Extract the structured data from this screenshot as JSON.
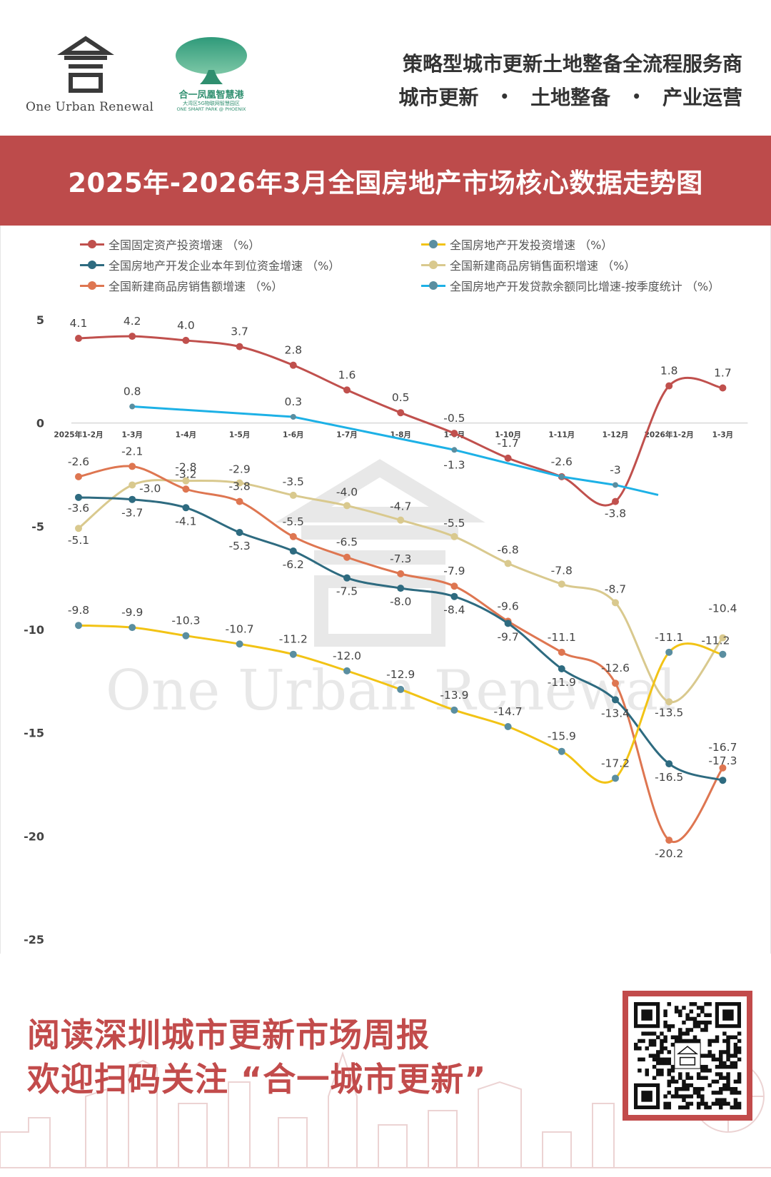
{
  "header": {
    "logo_text": "One Urban Renewal",
    "park_name": "合一凤凰智慧港",
    "park_subtitle_cn": "大湾区5G物联网智慧园区",
    "park_subtitle_en": "ONE SMART PARK @ PHOENIX",
    "slogan": "策略型城市更新土地整备全流程服务商",
    "services": [
      "城市更新",
      "土地整备",
      "产业运营"
    ],
    "services_separator": "•"
  },
  "banner": {
    "title": "2025年-2026年3月全国房地产市场核心数据走势图"
  },
  "watermark": {
    "text": "One Urban Renewal"
  },
  "chart_data": {
    "type": "line",
    "x": [
      "2025年1-2月",
      "1-3月",
      "1-4月",
      "1-5月",
      "1-6月",
      "1-7月",
      "1-8月",
      "1-9月",
      "1-10月",
      "1-11月",
      "1-12月",
      "2026年1-2月",
      "1-3月"
    ],
    "ylim": [
      -25,
      5
    ],
    "yticks": [
      5,
      0,
      -5,
      -10,
      -15,
      -20,
      -25
    ],
    "legend_position": "top",
    "grid": false,
    "series": [
      {
        "name": "全国固定资产投资增速 （%）",
        "color": "#c0504d",
        "values": [
          4.1,
          4.2,
          4.0,
          3.7,
          2.8,
          1.6,
          0.5,
          -0.5,
          -1.7,
          -2.6,
          -3.8,
          1.8,
          1.7
        ],
        "labels": [
          "4.1",
          "4.2",
          "4.0",
          "3.7",
          "2.8",
          "1.6",
          "0.5",
          "-0.5",
          "-1.7",
          "",
          "-3.8",
          "1.8",
          "1.7"
        ]
      },
      {
        "name": "全国房地产开发投资增速 （%）",
        "color": "#f2c315",
        "marker_color": "#5a8ea0",
        "values": [
          -9.8,
          -9.9,
          -10.3,
          -10.7,
          -11.2,
          -12.0,
          -12.9,
          -13.9,
          -14.7,
          -15.9,
          -17.2,
          -11.1,
          -11.2
        ],
        "labels": [
          "-9.8",
          "-9.9",
          "-10.3",
          "-10.7",
          "-11.2",
          "-12.0",
          "-12.9",
          "-13.9",
          "-14.7",
          "-15.9",
          "-17.2",
          "-11.1",
          "-11.2"
        ]
      },
      {
        "name": "全国房地产开发企业本年到位资金增速 （%）",
        "color": "#2e6b80",
        "values": [
          -3.6,
          -3.7,
          -4.1,
          -5.3,
          -6.2,
          -7.5,
          -8.0,
          -8.4,
          -9.7,
          -11.9,
          -13.4,
          -16.5,
          -17.3
        ],
        "labels": [
          "-3.6",
          "-3.7",
          "-4.1",
          "-5.3",
          "-6.2",
          "-7.5",
          "-8.0",
          "-8.4",
          "-9.7",
          "-11.9",
          "-13.4",
          "-16.5",
          "-17.3"
        ]
      },
      {
        "name": "全国新建商品房销售面积增速 （%）",
        "color": "#d9c98e",
        "values": [
          -5.1,
          -3.0,
          -2.8,
          -2.9,
          -3.5,
          -4.0,
          -4.7,
          -5.5,
          -6.8,
          -7.8,
          -8.7,
          -13.5,
          -10.4
        ],
        "labels": [
          "-5.1",
          "-3.0",
          "-2.8",
          "-2.9",
          "-3.5",
          "-4.0",
          "-4.7",
          "-5.5",
          "-6.8",
          "-7.8",
          "-8.7",
          "-13.5",
          "-10.4"
        ]
      },
      {
        "name": "全国新建商品房销售额增速 （%）",
        "color": "#de7651",
        "values": [
          -2.6,
          -2.1,
          -3.2,
          -3.8,
          -5.5,
          -6.5,
          -7.3,
          -7.9,
          -9.6,
          -11.1,
          -12.6,
          -20.2,
          -16.7
        ],
        "labels": [
          "-2.6",
          "-2.1",
          "-3.2",
          "-3.8",
          "-5.5",
          "-6.5",
          "-7.3",
          "-7.9",
          "-9.6",
          "-11.1",
          "-12.6",
          "-20.2",
          "-16.7"
        ]
      },
      {
        "name": "全国房地产开发贷款余额同比增速-按季度统计 （%）",
        "color": "#1db1e6",
        "marker_color": "#5a8ea0",
        "values": [
          null,
          0.8,
          null,
          null,
          0.3,
          null,
          null,
          -1.3,
          null,
          -2.6,
          -3,
          null,
          null
        ],
        "labels": [
          "",
          "0.8",
          "",
          "",
          "0.3",
          "",
          "",
          "-1.3",
          "",
          "-2.6",
          "-3",
          "",
          ""
        ]
      }
    ]
  },
  "footer": {
    "line1": "阅读深圳城市更新市场周报",
    "line2": "欢迎扫码关注 “合一城市更新”"
  }
}
